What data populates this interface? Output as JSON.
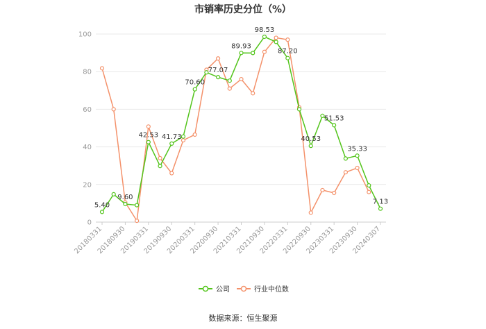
{
  "chart_data": {
    "type": "line",
    "title": "市销率历史分位（%）",
    "ylim": [
      0,
      100
    ],
    "yticks": [
      0,
      20,
      40,
      60,
      80,
      100
    ],
    "grid": true,
    "legend_position": "bottom",
    "x_tick_labels": [
      "20180331",
      "20180930",
      "20190331",
      "20190930",
      "20200331",
      "20200930",
      "20210331",
      "20210930",
      "20220331",
      "20220930",
      "20230331",
      "20230930",
      "20240307"
    ],
    "series": [
      {
        "name": "公司",
        "color": "#52c41a",
        "values": [
          5.4,
          14.8,
          9.6,
          9.0,
          42.53,
          29.8,
          41.73,
          45.5,
          70.6,
          79.6,
          77.07,
          75.2,
          89.93,
          89.9,
          98.53,
          95.8,
          87.2,
          60.0,
          40.53,
          56.5,
          51.53,
          33.8,
          35.33,
          19.5,
          7.13
        ],
        "labels": {
          "0": "5.40",
          "2": "9.60",
          "4": "42.53",
          "6": "41.73",
          "8": "70.60",
          "10": "77.07",
          "12": "89.93",
          "14": "98.53",
          "16": "87.20",
          "18": "40.53",
          "20": "51.53",
          "22": "35.33",
          "24": "7.13"
        }
      },
      {
        "name": "行业中位数",
        "color": "#f4916a",
        "values": [
          81.8,
          60.0,
          10.5,
          0.7,
          50.8,
          34.0,
          26.0,
          43.5,
          46.5,
          81.0,
          87.0,
          71.0,
          76.0,
          68.5,
          90.5,
          98.0,
          97.0,
          61.0,
          5.0,
          17.0,
          15.5,
          26.5,
          28.8,
          16.0,
          null
        ],
        "labels": {}
      }
    ]
  },
  "legend": {
    "company": "公司",
    "industry": "行业中位数"
  },
  "source": "数据来源：恒生聚源"
}
